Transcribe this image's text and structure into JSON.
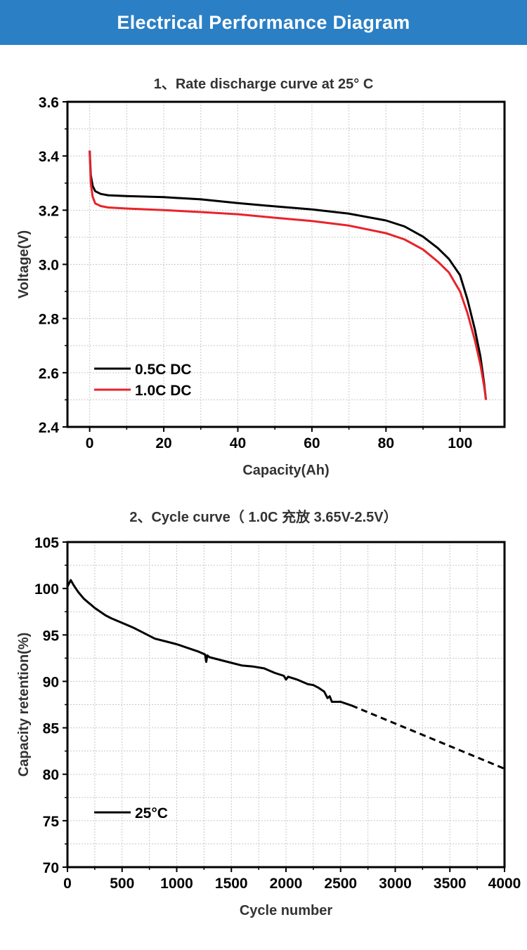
{
  "header": {
    "title": "Electrical Performance Diagram"
  },
  "chart_data": [
    {
      "type": "line",
      "title": "1、Rate discharge curve at 25° C",
      "xlabel": "Capacity(Ah)",
      "ylabel": "Voltage(V)",
      "xlim": [
        -6,
        112
      ],
      "ylim": [
        2.4,
        3.6
      ],
      "xticks": [
        "0",
        "20",
        "40",
        "60",
        "80",
        "100"
      ],
      "yticks": [
        "2.4",
        "2.6",
        "2.8",
        "3.0",
        "3.2",
        "3.4",
        "3.6"
      ],
      "grid": true,
      "legend": "bottom-left",
      "colors": {
        "series_0": "#000000",
        "series_1": "#e8232a",
        "grid": "#c8c8c8"
      },
      "series": [
        {
          "name": "0.5C DC",
          "x": [
            0,
            0.3,
            0.8,
            1.5,
            3,
            5,
            10,
            20,
            30,
            40,
            50,
            60,
            70,
            80,
            85,
            90,
            94,
            97,
            100,
            102,
            104,
            105.5,
            106.5,
            107
          ],
          "y": [
            3.42,
            3.33,
            3.29,
            3.27,
            3.26,
            3.255,
            3.252,
            3.248,
            3.24,
            3.226,
            3.214,
            3.203,
            3.187,
            3.162,
            3.14,
            3.102,
            3.06,
            3.02,
            2.96,
            2.87,
            2.76,
            2.66,
            2.56,
            2.5
          ]
        },
        {
          "name": "1.0C DC",
          "x": [
            0,
            0.3,
            0.8,
            1.5,
            3,
            5,
            10,
            20,
            30,
            40,
            50,
            60,
            70,
            80,
            85,
            90,
            94,
            97,
            100,
            102,
            104,
            105.5,
            106.5,
            107
          ],
          "y": [
            3.42,
            3.3,
            3.25,
            3.225,
            3.215,
            3.21,
            3.206,
            3.2,
            3.193,
            3.185,
            3.172,
            3.16,
            3.143,
            3.115,
            3.092,
            3.055,
            3.01,
            2.97,
            2.9,
            2.82,
            2.72,
            2.63,
            2.55,
            2.5
          ]
        }
      ]
    },
    {
      "type": "line",
      "title": "2、Cycle curve（ 1.0C 充放 3.65V-2.5V）",
      "xlabel": "Cycle number",
      "ylabel": "Capacity retention(%)",
      "xlim": [
        0,
        4000
      ],
      "ylim": [
        70,
        105
      ],
      "xticks": [
        "0",
        "500",
        "1000",
        "1500",
        "2000",
        "2500",
        "3000",
        "3500",
        "4000"
      ],
      "yticks": [
        "70",
        "75",
        "80",
        "85",
        "90",
        "95",
        "100",
        "105"
      ],
      "grid": true,
      "legend": "bottom-left",
      "colors": {
        "series_0": "#000000",
        "grid": "#c8c8c8"
      },
      "series": [
        {
          "name": "25°C",
          "x": [
            0,
            30,
            60,
            100,
            150,
            200,
            250,
            300,
            350,
            400,
            500,
            600,
            700,
            750,
            800,
            900,
            1000,
            1100,
            1200,
            1260,
            1270,
            1280,
            1300,
            1400,
            1500,
            1600,
            1700,
            1800,
            1900,
            1980,
            2000,
            2020,
            2100,
            2200,
            2250,
            2300,
            2350,
            2380,
            2400,
            2420,
            2500,
            2600
          ],
          "y": [
            100.2,
            100.9,
            100.3,
            99.6,
            98.9,
            98.4,
            97.9,
            97.5,
            97.1,
            96.8,
            96.3,
            95.8,
            95.2,
            94.9,
            94.6,
            94.3,
            94.0,
            93.6,
            93.2,
            92.9,
            92.1,
            92.8,
            92.6,
            92.3,
            92.0,
            91.7,
            91.6,
            91.4,
            90.9,
            90.6,
            90.2,
            90.5,
            90.2,
            89.7,
            89.6,
            89.3,
            88.9,
            88.2,
            88.4,
            87.8,
            87.8,
            87.4
          ]
        },
        {
          "name": "",
          "style": "dashed",
          "x": [
            2600,
            4000
          ],
          "y": [
            87.4,
            80.6
          ]
        }
      ]
    }
  ]
}
